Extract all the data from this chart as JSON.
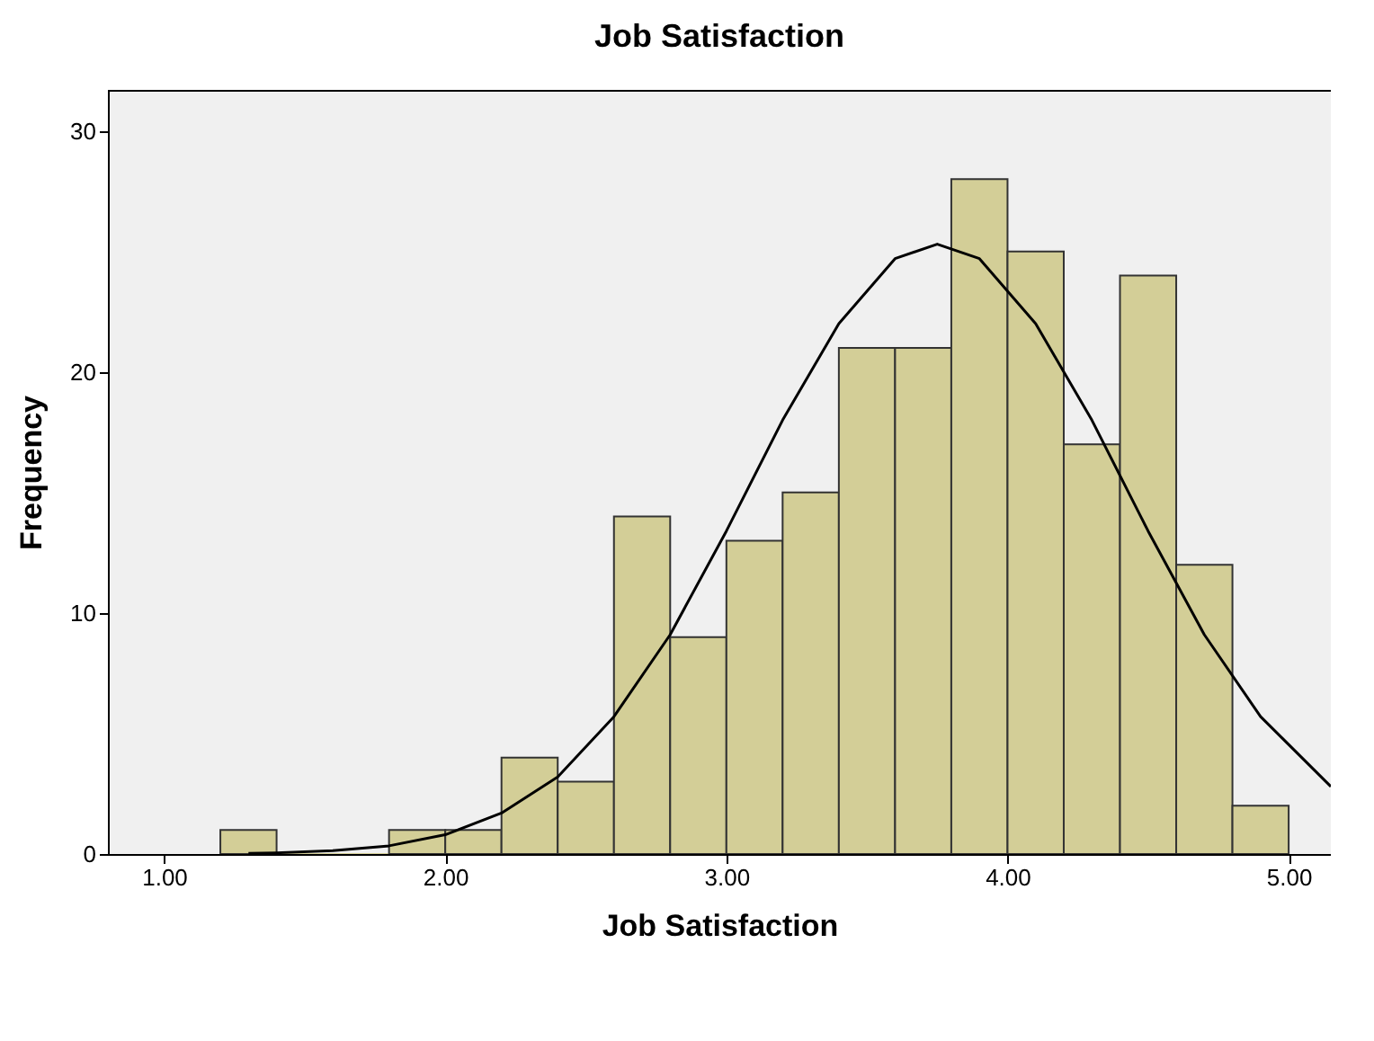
{
  "chart_data": {
    "type": "histogram",
    "title": "Job Satisfaction",
    "xlabel": "Job Satisfaction",
    "ylabel": "Frequency",
    "series": [
      {
        "type": "histogram",
        "color": "#d3ce97",
        "bins": [
          1.2,
          1.4,
          1.6,
          1.8,
          2.0,
          2.2,
          2.4,
          2.6,
          2.8,
          3.0,
          3.2,
          3.4,
          3.6,
          3.8,
          4.0,
          4.2,
          4.4,
          4.6,
          4.8,
          5.0
        ],
        "values": [
          1,
          0,
          0,
          1,
          1,
          4,
          3,
          14,
          9,
          13,
          15,
          21,
          21,
          28,
          25,
          17,
          24,
          12,
          2
        ]
      },
      {
        "type": "line",
        "color": "#000000",
        "x": [
          1.3,
          1.4,
          1.6,
          1.8,
          2.0,
          2.2,
          2.4,
          2.6,
          2.8,
          3.0,
          3.2,
          3.4,
          3.6,
          3.75,
          3.9,
          4.1,
          4.3,
          4.5,
          4.7,
          4.9,
          5.15
        ],
        "values": [
          0.03,
          0.05,
          0.14,
          0.34,
          0.8,
          1.7,
          3.2,
          5.7,
          9.1,
          13.4,
          18.0,
          22.0,
          24.7,
          25.3,
          24.7,
          22.0,
          18.0,
          13.4,
          9.1,
          5.7,
          2.8
        ]
      }
    ],
    "xlim": [
      0.8,
      5.15
    ],
    "ylim": [
      0,
      31.7
    ],
    "xticks": [
      {
        "value": 1,
        "label": "1.00"
      },
      {
        "value": 2,
        "label": "2.00"
      },
      {
        "value": 3,
        "label": "3.00"
      },
      {
        "value": 4,
        "label": "4.00"
      },
      {
        "value": 5,
        "label": "5.00"
      }
    ],
    "yticks": [
      0,
      10,
      20,
      30
    ],
    "grid": false
  }
}
